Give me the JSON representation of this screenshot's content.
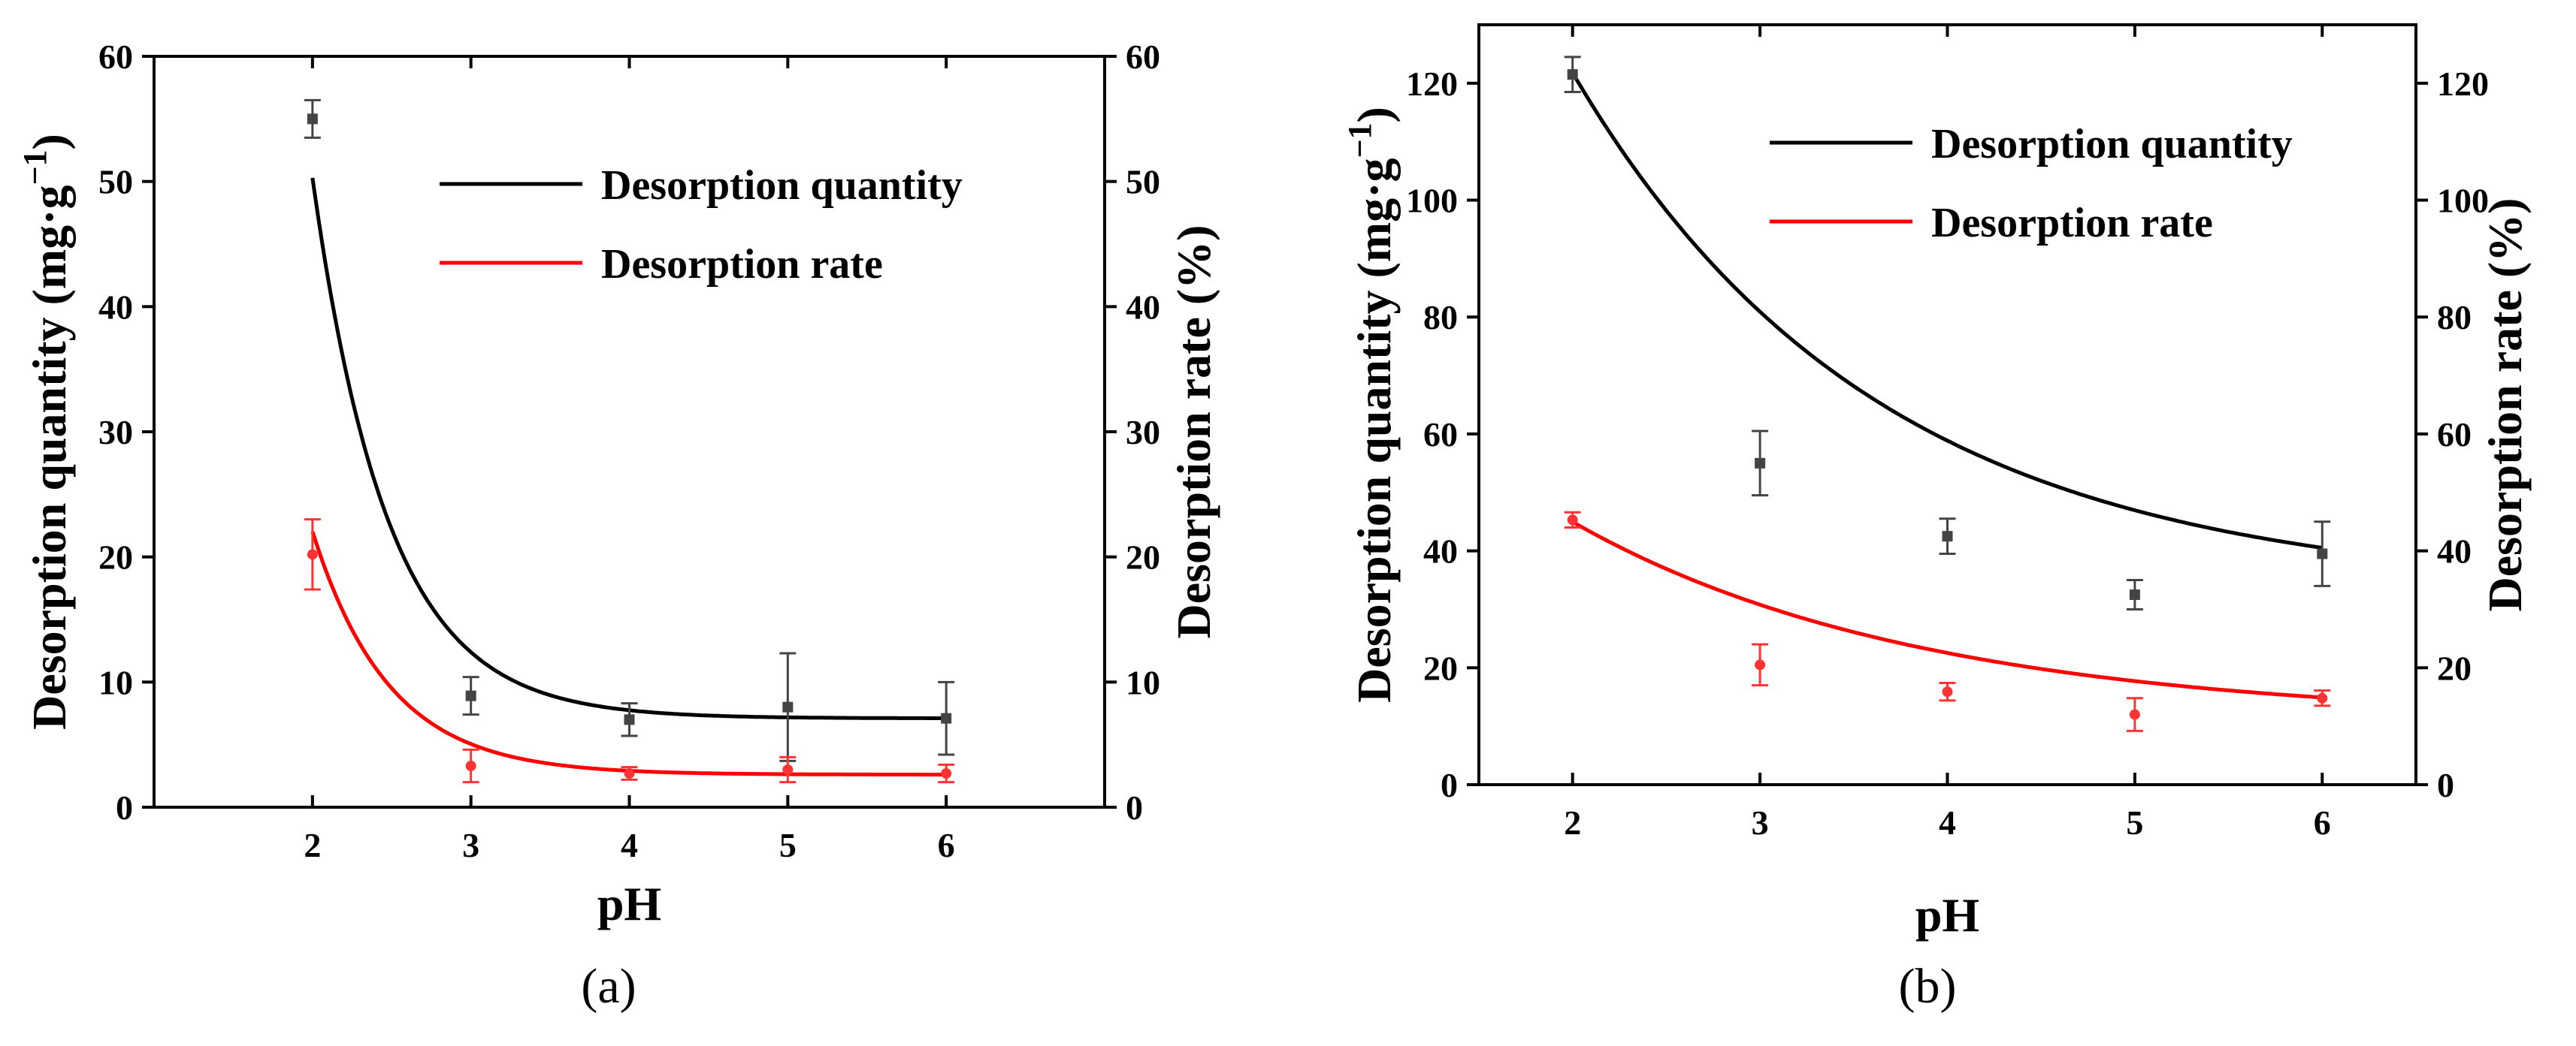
{
  "chart_data": [
    {
      "panel": "a",
      "caption": "(a)",
      "type": "line",
      "xlabel": "pH",
      "ylabel_left": "Desorption quantity (mg·g⁻¹)",
      "ylabel_right": "Desorption rate (%)",
      "xlim": [
        1,
        7
      ],
      "xticks": [
        2,
        3,
        4,
        5,
        6
      ],
      "ylim_left": [
        0,
        60
      ],
      "ylim_right": [
        0,
        60
      ],
      "yticks": [
        0,
        10,
        20,
        30,
        40,
        50,
        60
      ],
      "legend": [
        "Desorption quantity",
        "Desorption rate"
      ],
      "legend_position": "top-right",
      "series": [
        {
          "name": "Desorption quantity",
          "color": "#000000",
          "points": [
            {
              "x": 2,
              "y": 55.0,
              "err": 1.5
            },
            {
              "x": 3,
              "y": 8.9,
              "err": 1.5
            },
            {
              "x": 4,
              "y": 7.0,
              "err": 1.3
            },
            {
              "x": 5,
              "y": 8.0,
              "err": 4.3
            },
            {
              "x": 6,
              "y": 7.1,
              "err": 2.9
            }
          ],
          "fit": {
            "a": 2880,
            "b": 2.1,
            "c": 7.1
          }
        },
        {
          "name": "Desorption rate",
          "color": "#ff0000",
          "points": [
            {
              "x": 2,
              "y": 20.2,
              "err": 2.8
            },
            {
              "x": 3,
              "y": 3.3,
              "err": 1.3
            },
            {
              "x": 4,
              "y": 2.7,
              "err": 0.5
            },
            {
              "x": 5,
              "y": 3.0,
              "err": 1.0
            },
            {
              "x": 6,
              "y": 2.7,
              "err": 0.7
            }
          ],
          "fit": {
            "a": 1220,
            "b": 2.07,
            "c": 2.6
          }
        }
      ]
    },
    {
      "panel": "b",
      "caption": "(b)",
      "type": "line",
      "xlabel": "pH",
      "ylabel_left": "Desorption quantity (mg·g⁻¹)",
      "ylabel_right": "Desorption rate (%)",
      "xlim": [
        1.5,
        6.5
      ],
      "xticks": [
        2,
        3,
        4,
        5,
        6
      ],
      "ylim_left": [
        0,
        130
      ],
      "ylim_right": [
        0,
        130
      ],
      "yticks": [
        0,
        20,
        40,
        60,
        80,
        100,
        120
      ],
      "legend": [
        "Desorption quantity",
        "Desorption rate"
      ],
      "legend_position": "top-right",
      "series": [
        {
          "name": "Desorption quantity",
          "color": "#000000",
          "points": [
            {
              "x": 2,
              "y": 121.5,
              "err": 3.0
            },
            {
              "x": 3,
              "y": 55.0,
              "err": 5.5
            },
            {
              "x": 4,
              "y": 42.5,
              "err": 3.0
            },
            {
              "x": 5,
              "y": 32.5,
              "err": 2.5
            },
            {
              "x": 6,
              "y": 39.5,
              "err": 5.5
            }
          ],
          "fit": {
            "a": 305,
            "b": 0.617,
            "c": 33.0
          }
        },
        {
          "name": "Desorption rate",
          "color": "#ff0000",
          "points": [
            {
              "x": 2,
              "y": 45.3,
              "err": 1.3
            },
            {
              "x": 3,
              "y": 20.5,
              "err": 3.5
            },
            {
              "x": 4,
              "y": 15.9,
              "err": 1.5
            },
            {
              "x": 5,
              "y": 12.0,
              "err": 2.8
            },
            {
              "x": 6,
              "y": 14.8,
              "err": 1.3
            }
          ],
          "fit": {
            "a": 100,
            "b": 0.54,
            "c": 11.0
          }
        }
      ]
    }
  ]
}
